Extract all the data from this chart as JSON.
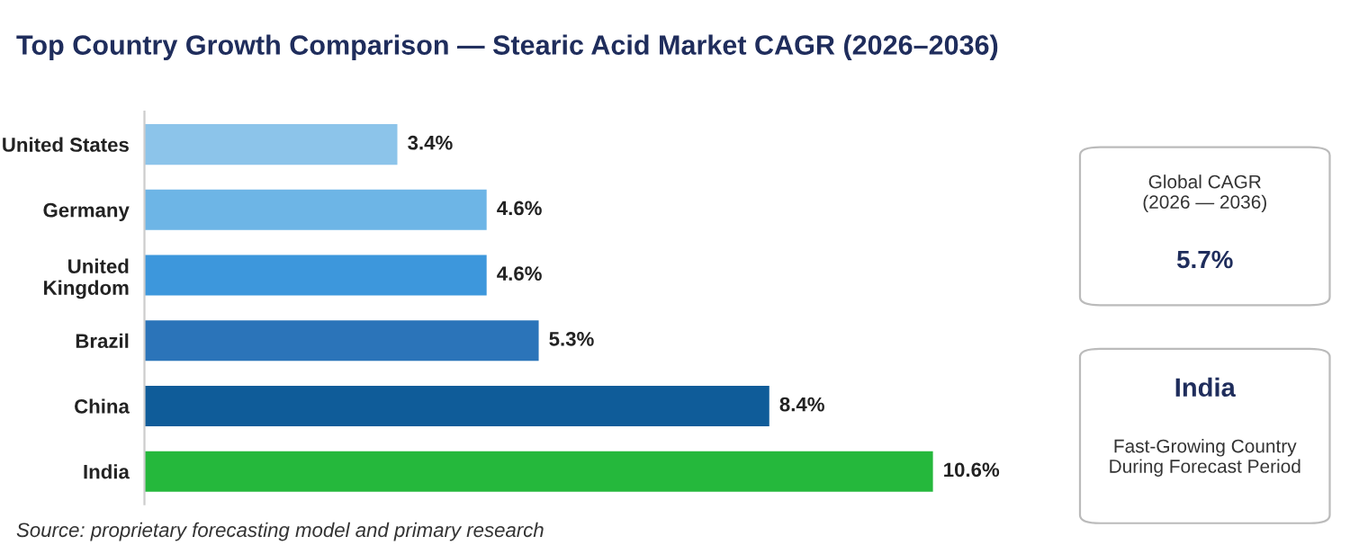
{
  "chart_data": {
    "type": "bar",
    "orientation": "horizontal",
    "title": "Top Country Growth Comparison — Stearic Acid Market CAGR (2026–2036)",
    "categories": [
      "United States",
      "Germany",
      "United\nKingdom",
      "Brazil",
      "China",
      "India"
    ],
    "values": [
      3.4,
      4.6,
      4.6,
      5.3,
      8.4,
      10.6
    ],
    "colors": [
      "#8cc4ea",
      "#6db5e6",
      "#3d97dc",
      "#2b74b9",
      "#0f5c99",
      "#25b83c"
    ],
    "value_labels": [
      "3.4%",
      "4.6%",
      "4.6%",
      "5.3%",
      "8.4%",
      "10.6%"
    ],
    "grid": false,
    "legend": false,
    "annotations": [
      "Source: proprietary forecasting model and primary research",
      "Global CAGR\n(2026 — 2036)",
      "5.7%",
      "India",
      "Fast-Growing Country\nDuring Forecast Period"
    ]
  }
}
